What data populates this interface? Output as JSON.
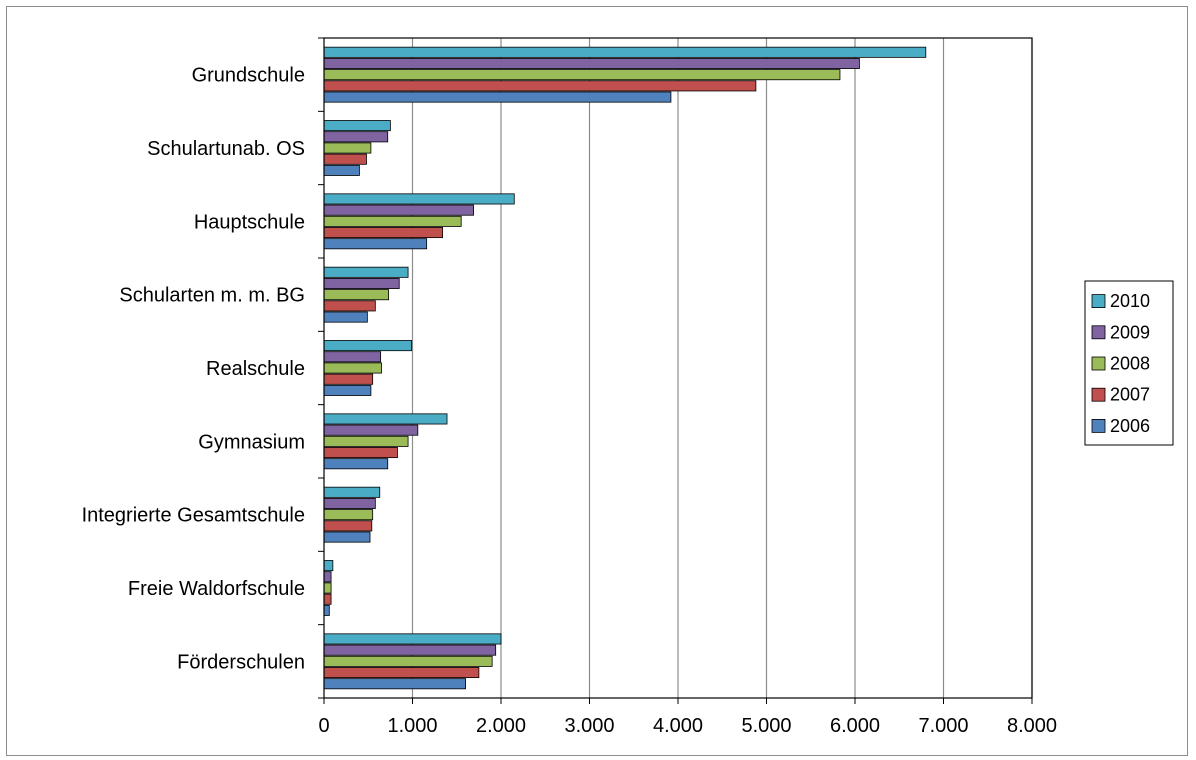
{
  "chart_data": {
    "type": "bar",
    "orientation": "horizontal",
    "categories": [
      "Grundschule",
      "Schulartunab. OS",
      "Hauptschule",
      "Schularten m. m. BG",
      "Realschule",
      "Gymnasium",
      "Integrierte Gesamtschule",
      "Freie Waldorfschule",
      "Förderschulen"
    ],
    "series": [
      {
        "name": "2010",
        "color": "#4bacc6",
        "values": [
          6800,
          750,
          2150,
          950,
          990,
          1390,
          630,
          100,
          2000
        ]
      },
      {
        "name": "2009",
        "color": "#8064a2",
        "values": [
          6050,
          720,
          1690,
          850,
          640,
          1060,
          580,
          80,
          1940
        ]
      },
      {
        "name": "2008",
        "color": "#9bbb59",
        "values": [
          5830,
          530,
          1550,
          730,
          650,
          950,
          550,
          80,
          1900
        ]
      },
      {
        "name": "2007",
        "color": "#c0504d",
        "values": [
          4880,
          480,
          1340,
          580,
          550,
          830,
          540,
          80,
          1750
        ]
      },
      {
        "name": "2006",
        "color": "#4f81bd",
        "values": [
          3920,
          400,
          1160,
          490,
          530,
          720,
          520,
          60,
          1600
        ]
      }
    ],
    "xlim": [
      0,
      8000
    ],
    "xticks": [
      "0",
      "1.000",
      "2.000",
      "3.000",
      "4.000",
      "5.000",
      "6.000",
      "7.000",
      "8.000"
    ],
    "xtick_values": [
      0,
      1000,
      2000,
      3000,
      4000,
      5000,
      6000,
      7000,
      8000
    ],
    "grid": "vertical",
    "legend_position": "right",
    "legend": [
      "2010",
      "2009",
      "2008",
      "2007",
      "2006"
    ],
    "title": "",
    "xlabel": "",
    "ylabel": ""
  }
}
